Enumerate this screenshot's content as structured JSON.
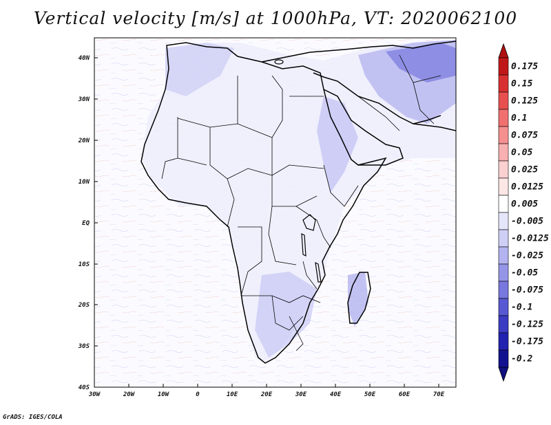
{
  "title": "Vertical velocity [m/s] at 1000hPa, VT: 2020062100",
  "footer": "GrADS: IGES/COLA",
  "axes": {
    "x_ticks": [
      "30W",
      "20W",
      "10W",
      "0",
      "10E",
      "20E",
      "30E",
      "40E",
      "50E",
      "60E",
      "70E"
    ],
    "y_ticks": [
      "40N",
      "30N",
      "20N",
      "10N",
      "EQ",
      "10S",
      "20S",
      "30S",
      "40S"
    ]
  },
  "legend": {
    "levels": [
      "0.175",
      "0.15",
      "0.125",
      "0.1",
      "0.075",
      "0.05",
      "0.025",
      "0.0125",
      "0.005",
      "-0.005",
      "-0.0125",
      "-0.025",
      "-0.05",
      "-0.075",
      "-0.1",
      "-0.125",
      "-0.175",
      "-0.2"
    ],
    "colors": [
      "#c01818",
      "#d83030",
      "#e85050",
      "#f07070",
      "#f59090",
      "#f8b0b0",
      "#fad0d0",
      "#fde6e6",
      "#ffffff",
      "#e6e6fb",
      "#cfcff6",
      "#b3b3f0",
      "#9595e8",
      "#7777de",
      "#5858d2",
      "#3b3bc4",
      "#2222b0",
      "#121290"
    ],
    "top_color": "#b01010",
    "bottom_color": "#101080"
  }
}
